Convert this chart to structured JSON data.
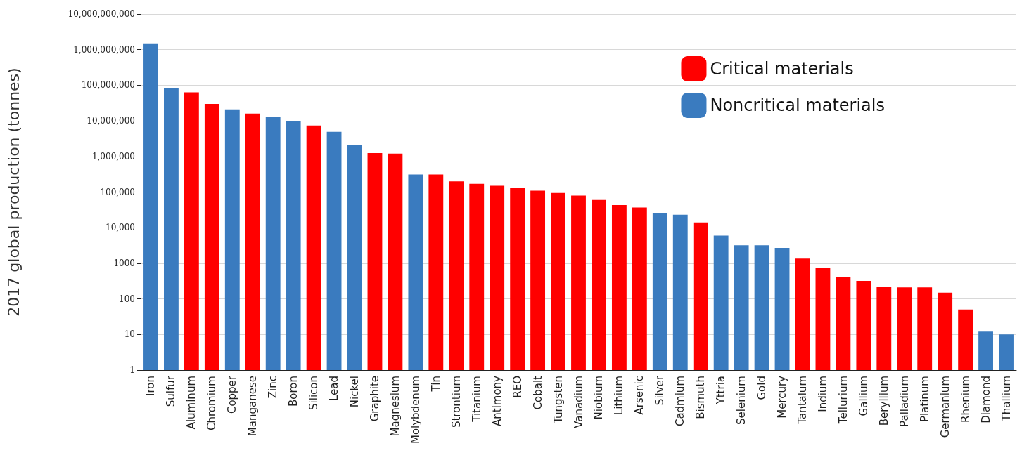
{
  "chart_data": {
    "type": "bar",
    "ylabel": "2017 global production (tonnes)",
    "log": "y",
    "grid": "y",
    "legend": "top right",
    "categories": [
      "Iron",
      "Sulfur",
      "Aluminum",
      "Chromium",
      "Copper",
      "Manganese",
      "Zinc",
      "Boron",
      "Silicon",
      "Lead",
      "Nickel",
      "Graphite",
      "Magnesium",
      "Molybdenum",
      "Tin",
      "Strontium",
      "Titanium",
      "Antimony",
      "REO",
      "Cobalt",
      "Tungsten",
      "Vanadium",
      "Niobium",
      "Lithium",
      "Arsenic",
      "Silver",
      "Cadmium",
      "Bismuth",
      "Yttria",
      "Selenium",
      "Gold",
      "Mercury",
      "Tantalum",
      "Indium",
      "Tellurium",
      "Gallium",
      "Beryllium",
      "Palladium",
      "Platinum",
      "Germanium",
      "Rhenium",
      "Diamond",
      "Thallium"
    ],
    "series": [
      {
        "name": "Critical materials",
        "color": "#ff0000",
        "values": [
          null,
          null,
          63000000,
          30000000,
          null,
          16000000,
          null,
          null,
          7400000,
          null,
          null,
          1250000,
          1200000,
          null,
          310000,
          200000,
          170000,
          150000,
          130000,
          110000,
          95000,
          80000,
          60000,
          43000,
          37000,
          null,
          null,
          14000,
          null,
          null,
          null,
          null,
          1350,
          750,
          420,
          320,
          220,
          210,
          210,
          150,
          50,
          null,
          null
        ]
      },
      {
        "name": "Noncritical materials",
        "color": "#3a7bbf",
        "values": [
          1500000000,
          85000000,
          null,
          null,
          21000000,
          null,
          13000000,
          10000000,
          null,
          4900000,
          2100000,
          null,
          null,
          310000,
          null,
          null,
          null,
          null,
          null,
          null,
          null,
          null,
          null,
          null,
          null,
          25000,
          23000,
          null,
          6000,
          3200,
          3200,
          2700,
          null,
          null,
          null,
          null,
          null,
          null,
          null,
          null,
          null,
          12,
          10
        ]
      }
    ],
    "ylim": [
      1,
      10000000000
    ],
    "yticks": [
      1,
      10,
      100,
      1000,
      {
        "value": 10000,
        "label": "10,000"
      },
      {
        "value": 100000,
        "label": "100,000"
      },
      {
        "value": 1000000,
        "label": "1,000,000"
      },
      {
        "value": 10000000,
        "label": "10,000,000"
      },
      {
        "value": 100000000,
        "label": "100,000,000"
      },
      {
        "value": 1000000000,
        "label": "1,000,000,000"
      },
      {
        "value": 10000000000,
        "label": "10,000,000,000"
      }
    ]
  }
}
